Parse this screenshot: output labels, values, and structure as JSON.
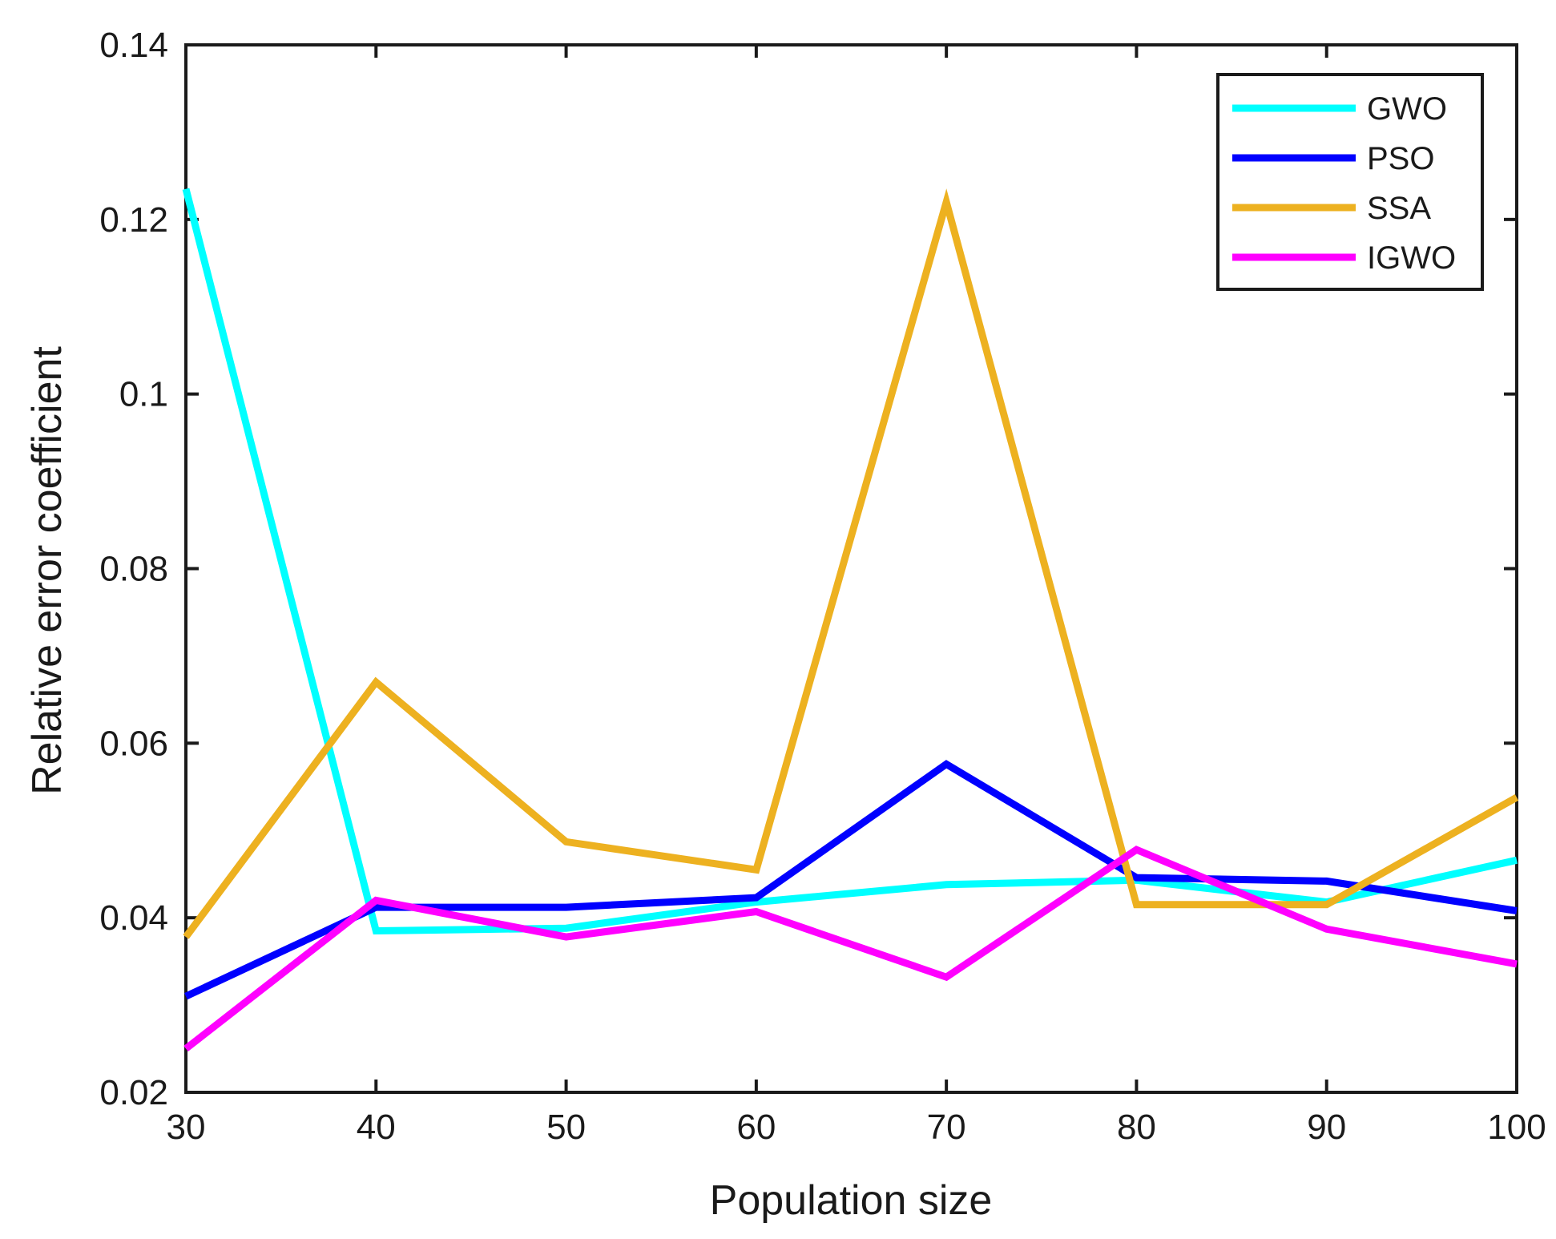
{
  "chart_data": {
    "type": "line",
    "title": "",
    "xlabel": "Population size",
    "ylabel": "Relative error coefficient",
    "x": [
      30,
      40,
      50,
      60,
      70,
      80,
      90,
      100
    ],
    "xlim": [
      30,
      100
    ],
    "ylim": [
      0.02,
      0.14
    ],
    "xticks": [
      "30",
      "40",
      "50",
      "60",
      "70",
      "80",
      "90",
      "100"
    ],
    "yticks": [
      "0.02",
      "0.04",
      "0.06",
      "0.08",
      "0.1",
      "0.12",
      "0.14"
    ],
    "grid": false,
    "legend_position": "top-right",
    "series": [
      {
        "name": "GWO",
        "color": "#00ffff",
        "values": [
          0.1235,
          0.0385,
          0.0388,
          0.0418,
          0.0438,
          0.0443,
          0.0418,
          0.0466
        ]
      },
      {
        "name": "PSO",
        "color": "#0000ff",
        "values": [
          0.031,
          0.0412,
          0.0412,
          0.0423,
          0.0576,
          0.0446,
          0.0442,
          0.0408
        ]
      },
      {
        "name": "SSA",
        "color": "#edb120",
        "values": [
          0.0378,
          0.067,
          0.0487,
          0.0455,
          0.122,
          0.0415,
          0.0415,
          0.0538
        ]
      },
      {
        "name": "IGWO",
        "color": "#ff00ff",
        "values": [
          0.025,
          0.042,
          0.0378,
          0.0407,
          0.0332,
          0.0478,
          0.0387,
          0.0347
        ]
      }
    ]
  }
}
